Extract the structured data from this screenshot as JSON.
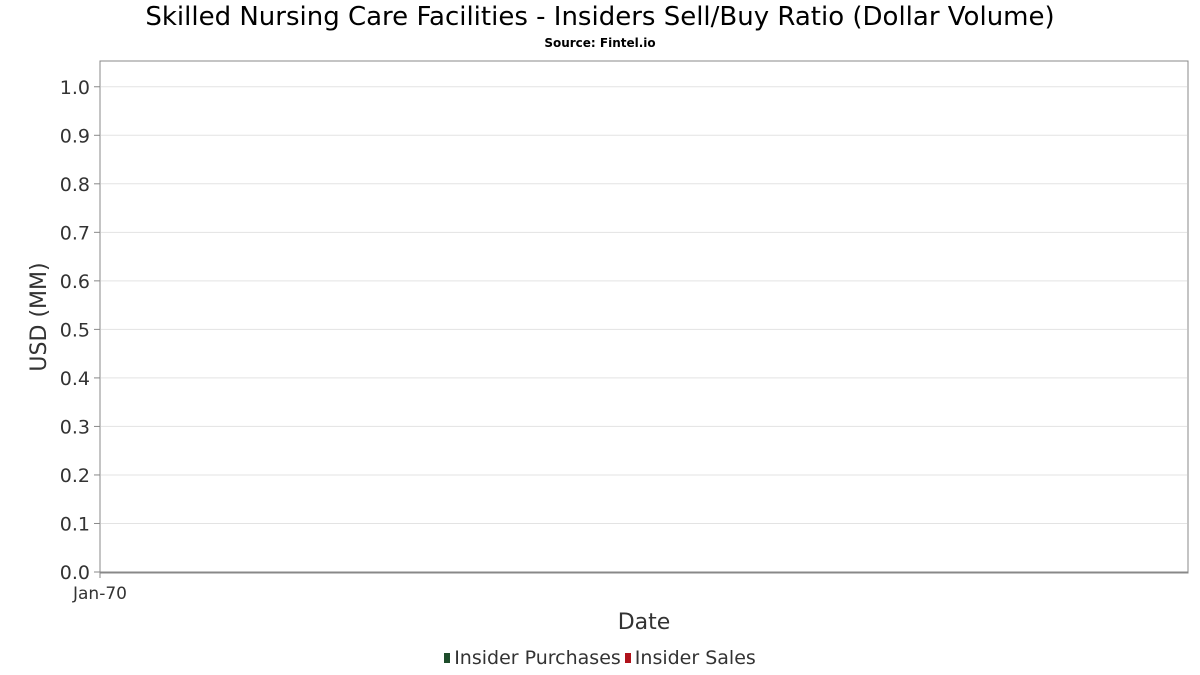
{
  "chart_data": {
    "type": "bar",
    "title": "Skilled Nursing Care Facilities - Insiders Sell/Buy Ratio (Dollar Volume)",
    "subtitle": "Source: Fintel.io",
    "xlabel": "Date",
    "ylabel": "USD (MM)",
    "x_tick_labels": [
      "Jan-70"
    ],
    "y_ticks": [
      0.0,
      0.1,
      0.2,
      0.3,
      0.4,
      0.5,
      0.6,
      0.7,
      0.8,
      0.9,
      1.0
    ],
    "y_tick_labels": [
      "0.0",
      "0.1",
      "0.2",
      "0.3",
      "0.4",
      "0.5",
      "0.6",
      "0.7",
      "0.8",
      "0.9",
      "1.0"
    ],
    "ylim": [
      0,
      1.05
    ],
    "grid": true,
    "legend_position": "bottom-center",
    "series": [
      {
        "name": "Insider Purchases",
        "color": "#1e4d2b",
        "values": []
      },
      {
        "name": "Insider Sales",
        "color": "#b0121b",
        "values": []
      }
    ]
  }
}
